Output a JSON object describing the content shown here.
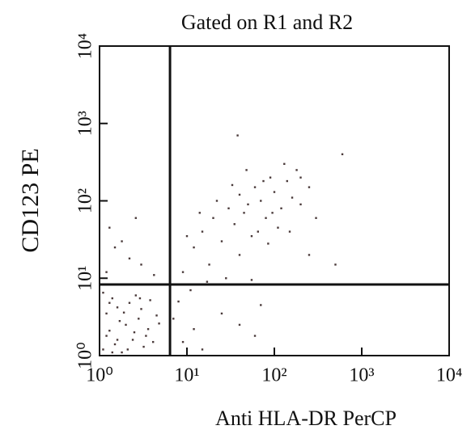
{
  "chart_data": {
    "type": "scatter",
    "title": "Gated on R1 and R2",
    "x_label": "Anti HLA-DR PerCP",
    "y_label": "CD123 PE",
    "xscale": "log",
    "yscale": "log",
    "xlim": [
      1,
      10000
    ],
    "ylim": [
      1,
      10000
    ],
    "xticks": [
      {
        "value": 1,
        "label": "10⁰"
      },
      {
        "value": 10,
        "label": "10¹"
      },
      {
        "value": 100,
        "label": "10²"
      },
      {
        "value": 1000,
        "label": "10³"
      },
      {
        "value": 10000,
        "label": "10⁴"
      }
    ],
    "yticks": [
      {
        "value": 1,
        "label": "10⁰"
      },
      {
        "value": 10,
        "label": "10¹"
      },
      {
        "value": 100,
        "label": "10²"
      },
      {
        "value": 1000,
        "label": "10³"
      },
      {
        "value": 10000,
        "label": "10⁴"
      }
    ],
    "quadrant_x": 6.4,
    "quadrant_y": 8.3,
    "series": [
      {
        "color": "#4a3a3a",
        "x": [
          1.1,
          1.3,
          1.5,
          1.2,
          1.8,
          2.0,
          2.4,
          1.6,
          2.8,
          3.2,
          1.4,
          2.2,
          3.6,
          4.1,
          1.1,
          2.6,
          3.0,
          4.5,
          1.7,
          1.2,
          2.1,
          3.8,
          1.4,
          2.5,
          1.9,
          4.8,
          1.3,
          3.4,
          2.9,
          1.6,
          1.2,
          1.5,
          2.2,
          1.3,
          3.0,
          1.8,
          4.2,
          2.6,
          7,
          9,
          12,
          8,
          15,
          25,
          40,
          60,
          70,
          11,
          9,
          12,
          15,
          18,
          20,
          25,
          30,
          35,
          40,
          45,
          50,
          55,
          60,
          70,
          80,
          90,
          100,
          120,
          140,
          160,
          180,
          200,
          250,
          300,
          40,
          28,
          22,
          65,
          110,
          75,
          130,
          85,
          33,
          48,
          95,
          150,
          600,
          500,
          250,
          14,
          10,
          38,
          17,
          55,
          200
        ],
        "values": [
          1.2,
          2.1,
          1.4,
          3.5,
          1.1,
          2.5,
          1.6,
          4.2,
          3.0,
          1.3,
          5.5,
          4.8,
          2.2,
          1.5,
          6.5,
          6.0,
          4.0,
          3.3,
          2.8,
          1.8,
          1.2,
          5.2,
          1.1,
          2.0,
          3.6,
          2.6,
          4.8,
          1.8,
          5.5,
          1.6,
          12,
          25,
          18,
          45,
          15,
          30,
          11,
          60,
          3,
          1.5,
          2.2,
          5,
          1.2,
          3.5,
          2.5,
          1.8,
          4.5,
          7,
          12,
          25,
          40,
          15,
          60,
          30,
          80,
          50,
          120,
          70,
          90,
          35,
          150,
          100,
          60,
          200,
          130,
          80,
          180,
          110,
          250,
          90,
          150,
          60,
          20,
          10,
          100,
          40,
          45,
          180,
          300,
          28,
          160,
          250,
          70,
          40,
          400,
          15,
          20,
          70,
          35,
          700,
          9,
          9.5,
          200
        ]
      }
    ]
  }
}
